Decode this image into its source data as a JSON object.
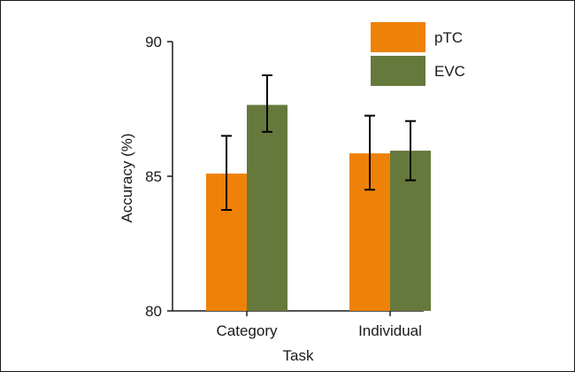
{
  "chart_data": {
    "type": "bar",
    "title": "",
    "xlabel": "Task",
    "ylabel": "Accuracy (%)",
    "categories": [
      "Category",
      "Individual"
    ],
    "ylim": [
      80,
      90
    ],
    "yticks": [
      "80",
      "85",
      "90"
    ],
    "series": [
      {
        "name": "pTC",
        "color": "#ee8208",
        "values": [
          85.1,
          85.85
        ],
        "err_low": [
          83.75,
          84.5
        ],
        "err_high": [
          86.5,
          87.25
        ]
      },
      {
        "name": "EVC",
        "color": "#66793c",
        "values": [
          87.65,
          85.95
        ],
        "err_low": [
          86.65,
          84.85
        ],
        "err_high": [
          88.75,
          87.05
        ]
      }
    ],
    "legend": "top-right",
    "grid": false,
    "error_bars": true
  }
}
